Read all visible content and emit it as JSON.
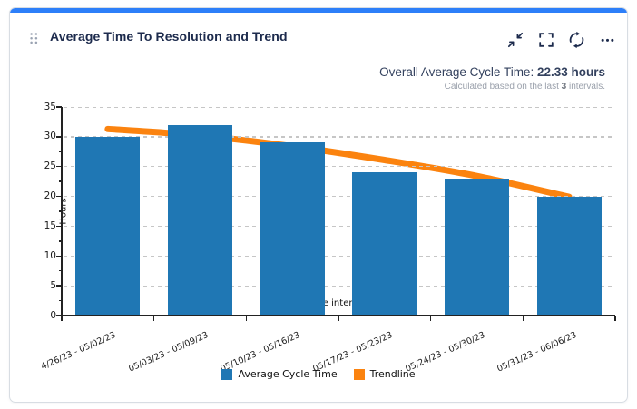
{
  "card": {
    "title": "Average Time To Resolution and Trend",
    "header_icons": [
      {
        "name": "drag-handle-icon"
      },
      {
        "name": "collapse-icon"
      },
      {
        "name": "fullscreen-icon"
      },
      {
        "name": "refresh-icon"
      },
      {
        "name": "more-options-icon"
      }
    ],
    "overall": {
      "label": "Overall Average Cycle Time: ",
      "value": "22.33 hours",
      "subtitle_prefix": "Calculated based on the last ",
      "subtitle_bold": "3",
      "subtitle_suffix": " intervals."
    }
  },
  "chart_data": {
    "type": "bar",
    "categories": [
      "4/26/23 - 05/02/23",
      "05/03/23 - 05/09/23",
      "05/10/23 - 05/16/23",
      "05/17/23 - 05/23/23",
      "05/24/23 - 05/30/23",
      "05/31/23 - 06/06/23"
    ],
    "series": [
      {
        "name": "Average Cycle Time",
        "type": "bar",
        "color": "#1f77b4",
        "values": [
          30,
          32,
          29,
          24,
          23,
          20
        ]
      },
      {
        "name": "Trendline",
        "type": "line",
        "color": "#fb830f",
        "values": [
          31.3,
          30.2,
          28.4,
          26.1,
          23.4,
          19.9
        ]
      }
    ],
    "xlabel": "Time intervals",
    "ylabel": "Hours",
    "ylim": [
      0,
      35
    ],
    "yticks": [
      0,
      5,
      10,
      15,
      20,
      25,
      30,
      35
    ],
    "grid": "horizontal-dashed",
    "legend_position": "bottom"
  },
  "colors": {
    "accent_bar": "#2d7ff9",
    "title_text": "#1d2b4d",
    "icon": "#1d2b4d",
    "overall_text": "#33415e",
    "subtitle_text": "#9aa0ab",
    "subtitle_bold": "#6d737d",
    "card_border": "#d8dde3",
    "gridline": "#c6c6c6",
    "axis": "#222222",
    "drag_dots": "#9aa3b2"
  }
}
